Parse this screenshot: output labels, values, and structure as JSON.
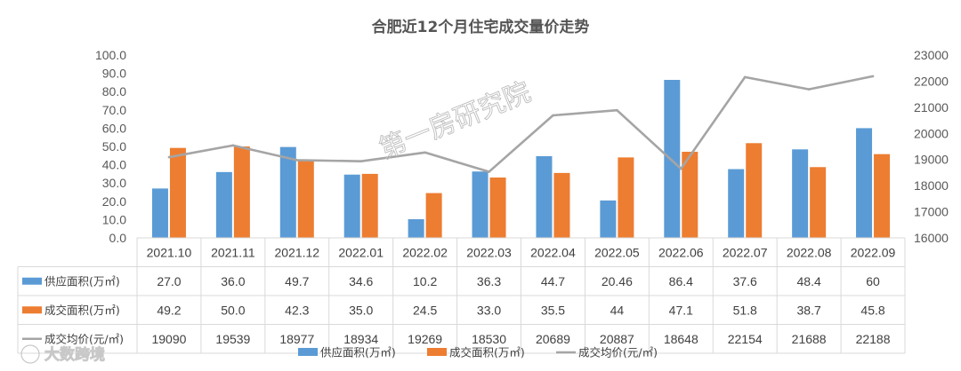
{
  "colors": {
    "supply": "#5b9bd5",
    "deal": "#ed7d31",
    "price": "#a5a5a5",
    "grid": "#d9d9d9",
    "text": "#595959"
  },
  "watermark": "第一房研究院",
  "brand": "大数跨境",
  "chart_data": {
    "type": "bar",
    "title": "合肥近12个月住宅成交量价走势",
    "categories": [
      "2021.10",
      "2021.11",
      "2021.12",
      "2022.01",
      "2022.02",
      "2022.03",
      "2022.04",
      "2022.05",
      "2022.06",
      "2022.07",
      "2022.08",
      "2022.09"
    ],
    "series": [
      {
        "name": "供应面积(万㎡)",
        "type": "bar",
        "axis": "left",
        "color_key": "supply",
        "values": [
          27.0,
          36.0,
          49.7,
          34.6,
          10.2,
          36.3,
          44.7,
          20.46,
          86.4,
          37.6,
          48.4,
          60
        ],
        "labels": [
          "27.0",
          "36.0",
          "49.7",
          "34.6",
          "10.2",
          "36.3",
          "44.7",
          "20.46",
          "86.4",
          "37.6",
          "48.4",
          "60"
        ]
      },
      {
        "name": "成交面积(万㎡)",
        "type": "bar",
        "axis": "left",
        "color_key": "deal",
        "values": [
          49.2,
          50.0,
          42.3,
          35.0,
          24.5,
          33.0,
          35.5,
          44,
          47.1,
          51.8,
          38.7,
          45.8
        ],
        "labels": [
          "49.2",
          "50.0",
          "42.3",
          "35.0",
          "24.5",
          "33.0",
          "35.5",
          "44",
          "47.1",
          "51.8",
          "38.7",
          "45.8"
        ]
      },
      {
        "name": "成交均价(元/㎡)",
        "type": "line",
        "axis": "right",
        "color_key": "price",
        "values": [
          19090,
          19539,
          18977,
          18934,
          19269,
          18530,
          20689,
          20887,
          18648,
          22154,
          21688,
          22188
        ],
        "labels": [
          "19090",
          "19539",
          "18977",
          "18934",
          "19269",
          "18530",
          "20689",
          "20887",
          "18648",
          "22154",
          "21688",
          "22188"
        ]
      }
    ],
    "y_left": {
      "min": 0,
      "max": 100,
      "step": 10,
      "tick_labels": [
        "0.0",
        "10.0",
        "20.0",
        "30.0",
        "40.0",
        "50.0",
        "60.0",
        "70.0",
        "80.0",
        "90.0",
        "100.0"
      ]
    },
    "y_right": {
      "min": 16000,
      "max": 23000,
      "step": 1000,
      "tick_labels": [
        "16000",
        "17000",
        "18000",
        "19000",
        "20000",
        "21000",
        "22000",
        "23000"
      ]
    },
    "grid": false,
    "data_table": true,
    "legend_position": "bottom"
  }
}
